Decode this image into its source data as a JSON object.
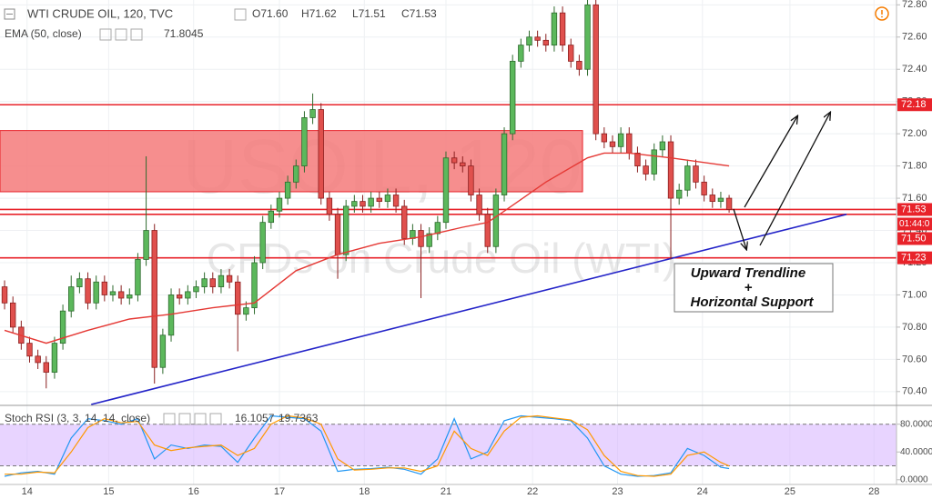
{
  "chart_data": [
    {
      "type": "candlestick",
      "title": "WTI CRUDE OIL, 120, TVC",
      "ohlc_labels": [
        "O71.60",
        "H71.62",
        "L71.51",
        "C71.53"
      ],
      "watermark": [
        "USOIL, 120",
        "CFDs on Crude Oil (WTI)"
      ],
      "annotation": [
        "Upward Trendline",
        "+",
        "Horizontal Support"
      ],
      "up_color": "#5cb85c",
      "down_color": "#e0504d",
      "open": [
        71.05,
        70.95,
        70.8,
        70.7,
        70.62,
        70.58,
        70.52,
        70.7,
        70.9,
        71.05,
        71.1,
        70.95,
        71.08,
        71.0,
        71.02,
        70.98,
        71.0,
        71.22,
        71.4,
        70.55,
        70.75,
        71.0,
        70.98,
        71.02,
        71.05,
        71.1,
        71.05,
        71.12,
        71.08,
        70.88,
        70.92,
        71.2,
        71.45,
        71.52,
        71.6,
        71.7,
        71.8,
        72.1,
        72.15,
        71.6,
        71.5,
        71.25,
        71.55,
        71.58,
        71.55,
        71.6,
        71.58,
        71.62,
        71.55,
        71.35,
        71.4,
        71.3,
        71.38,
        71.45,
        71.85,
        71.82,
        71.8,
        71.62,
        71.5,
        71.3,
        71.62,
        72.0,
        72.45,
        72.55,
        72.6,
        72.58,
        72.55,
        72.75,
        72.55,
        72.45,
        72.4,
        72.8,
        72.0,
        71.95,
        71.92,
        72.0,
        71.88,
        71.8,
        71.75,
        71.9,
        71.95,
        71.6,
        71.65,
        71.8,
        71.7,
        71.62,
        71.58,
        71.6
      ],
      "high": [
        71.09,
        70.99,
        70.84,
        70.74,
        70.66,
        70.62,
        70.74,
        70.94,
        71.12,
        71.14,
        71.14,
        71.12,
        71.12,
        71.06,
        71.06,
        71.04,
        71.26,
        71.86,
        71.44,
        70.79,
        71.04,
        71.04,
        71.06,
        71.09,
        71.14,
        71.14,
        71.16,
        71.16,
        71.12,
        70.96,
        71.24,
        71.49,
        71.56,
        71.64,
        71.74,
        71.84,
        72.14,
        72.25,
        72.19,
        71.64,
        71.54,
        71.59,
        71.62,
        71.62,
        71.64,
        71.64,
        71.66,
        71.66,
        71.59,
        71.44,
        71.44,
        71.42,
        71.49,
        71.89,
        71.89,
        71.86,
        71.84,
        71.66,
        71.54,
        71.66,
        72.04,
        72.49,
        72.59,
        72.64,
        72.64,
        72.62,
        72.79,
        72.79,
        72.59,
        72.49,
        72.83,
        72.83,
        72.04,
        71.99,
        72.04,
        72.04,
        71.92,
        71.84,
        71.94,
        71.99,
        71.99,
        71.69,
        71.84,
        71.84,
        71.74,
        71.66,
        71.64,
        71.62
      ],
      "low": [
        70.91,
        70.76,
        70.66,
        70.58,
        70.54,
        70.42,
        70.48,
        70.66,
        70.86,
        71.01,
        70.91,
        70.91,
        70.96,
        70.96,
        70.94,
        70.94,
        70.96,
        71.18,
        70.45,
        70.51,
        70.71,
        70.94,
        70.94,
        70.98,
        71.01,
        71.01,
        71.01,
        71.04,
        70.65,
        70.84,
        70.88,
        71.16,
        71.41,
        71.48,
        71.56,
        71.66,
        71.76,
        72.06,
        71.56,
        71.46,
        71.1,
        71.21,
        71.51,
        71.51,
        71.51,
        71.54,
        71.54,
        71.51,
        71.31,
        71.31,
        70.98,
        71.26,
        71.34,
        71.41,
        71.78,
        71.76,
        71.58,
        71.46,
        71.26,
        71.26,
        71.58,
        71.96,
        72.41,
        72.51,
        72.54,
        72.51,
        72.51,
        72.51,
        72.41,
        72.36,
        72.36,
        71.96,
        71.91,
        71.88,
        71.88,
        71.84,
        71.76,
        71.71,
        71.71,
        71.86,
        71.22,
        71.56,
        71.61,
        71.66,
        71.58,
        71.54,
        71.54,
        71.51
      ],
      "close": [
        70.95,
        70.8,
        70.7,
        70.62,
        70.58,
        70.52,
        70.7,
        70.9,
        71.05,
        71.1,
        70.95,
        71.08,
        71.0,
        71.02,
        70.98,
        71.0,
        71.22,
        71.4,
        70.55,
        70.75,
        71.0,
        70.98,
        71.02,
        71.05,
        71.1,
        71.05,
        71.12,
        71.08,
        70.88,
        70.92,
        71.2,
        71.45,
        71.52,
        71.6,
        71.7,
        71.8,
        72.1,
        72.15,
        71.6,
        71.5,
        71.25,
        71.55,
        71.58,
        71.55,
        71.6,
        71.58,
        71.62,
        71.55,
        71.35,
        71.4,
        71.3,
        71.38,
        71.45,
        71.85,
        71.82,
        71.8,
        71.62,
        71.5,
        71.3,
        71.62,
        72.0,
        72.45,
        72.55,
        72.6,
        72.58,
        72.55,
        72.75,
        72.55,
        72.45,
        72.4,
        72.8,
        72.0,
        71.95,
        71.92,
        72.0,
        71.88,
        71.8,
        71.75,
        71.9,
        71.95,
        71.6,
        71.65,
        71.8,
        71.7,
        71.62,
        71.58,
        71.6,
        71.53
      ],
      "ema": {
        "name": "EMA (50, close)",
        "color": "#e53935",
        "value_label": "71.8045",
        "x": [
          0,
          5,
          10,
          15,
          20,
          25,
          30,
          35,
          40,
          45,
          50,
          55,
          58,
          60,
          65,
          70,
          72,
          75,
          80,
          87
        ],
        "values": [
          70.78,
          70.7,
          70.78,
          70.85,
          70.88,
          70.92,
          70.95,
          71.15,
          71.25,
          71.32,
          71.36,
          71.42,
          71.45,
          71.52,
          71.7,
          71.85,
          71.88,
          71.88,
          71.85,
          71.8
        ]
      },
      "levels": [
        {
          "value": 72.18,
          "label": "72.18"
        },
        {
          "value": 71.53,
          "label": "71.53"
        },
        {
          "value": 71.5,
          "label": "71.50"
        },
        {
          "value": 71.23,
          "label": "71.23"
        }
      ],
      "level_color": "#e8232a",
      "countdown": "01:44:0",
      "zone": {
        "x": [
          -0.55,
          69.4
        ],
        "y": [
          71.64,
          72.02
        ],
        "color": "#f47a7a"
      },
      "trendline": {
        "x": [
          10.4,
          101.1
        ],
        "y": [
          70.32,
          71.5
        ],
        "color": "#2323c8"
      },
      "xlim": [
        -0.55,
        107.1
      ],
      "xticks": [
        {
          "value": 2.7,
          "label": "14"
        },
        {
          "value": 12.5,
          "label": "15"
        },
        {
          "value": 22.7,
          "label": "16"
        },
        {
          "value": 33,
          "label": "17"
        },
        {
          "value": 43.2,
          "label": "18"
        },
        {
          "value": 53,
          "label": "21"
        },
        {
          "value": 63.4,
          "label": "22"
        },
        {
          "value": 73.6,
          "label": "23"
        },
        {
          "value": 83.8,
          "label": "24"
        },
        {
          "value": 94.3,
          "label": "25"
        },
        {
          "value": 104.4,
          "label": "28"
        }
      ],
      "ylim": [
        70.32,
        72.83
      ],
      "yticks": [
        {
          "value": 70.4,
          "label": "70.40"
        },
        {
          "value": 70.6,
          "label": "70.60"
        },
        {
          "value": 70.8,
          "label": "70.80"
        },
        {
          "value": 71.0,
          "label": "71.00"
        },
        {
          "value": 71.2,
          "label": "71.20"
        },
        {
          "value": 71.4,
          "label": "71.40"
        },
        {
          "value": 71.6,
          "label": "71.60"
        },
        {
          "value": 71.8,
          "label": "71.80"
        },
        {
          "value": 72.0,
          "label": "72.00"
        },
        {
          "value": 72.2,
          "label": "72.20"
        },
        {
          "value": 72.4,
          "label": "72.40"
        },
        {
          "value": 72.6,
          "label": "72.60"
        },
        {
          "value": 72.8,
          "label": "72.80"
        }
      ],
      "grid": true
    },
    {
      "type": "stoch",
      "title": "Stoch RSI (3, 3, 14, 14, close)",
      "series": [
        {
          "color": "#2196f3",
          "value_label": "16.1057",
          "x": [
            0,
            2,
            4,
            6,
            8,
            10,
            12,
            14,
            16,
            18,
            20,
            22,
            24,
            26,
            28,
            30,
            32,
            34,
            36,
            38,
            40,
            42,
            44,
            46,
            48,
            50,
            52,
            54,
            56,
            58,
            60,
            62,
            64,
            66,
            68,
            70,
            72,
            74,
            76,
            78,
            80,
            82,
            84,
            86,
            87
          ],
          "values": [
            5,
            10,
            12,
            8,
            60,
            88,
            85,
            80,
            88,
            30,
            50,
            45,
            50,
            48,
            25,
            60,
            92,
            90,
            88,
            70,
            12,
            15,
            16,
            18,
            15,
            8,
            30,
            88,
            30,
            40,
            85,
            92,
            90,
            88,
            85,
            60,
            20,
            8,
            5,
            6,
            10,
            45,
            35,
            18,
            16.1057
          ]
        },
        {
          "color": "#ff9800",
          "value_label": "19.7363",
          "x": [
            0,
            2,
            4,
            6,
            8,
            10,
            12,
            14,
            16,
            18,
            20,
            22,
            24,
            26,
            28,
            30,
            32,
            34,
            36,
            38,
            40,
            42,
            44,
            46,
            48,
            50,
            52,
            54,
            56,
            58,
            60,
            62,
            64,
            66,
            68,
            70,
            72,
            74,
            76,
            78,
            80,
            82,
            84,
            86,
            87
          ],
          "values": [
            8,
            8,
            11,
            10,
            40,
            75,
            88,
            82,
            84,
            50,
            42,
            46,
            48,
            50,
            35,
            45,
            80,
            92,
            89,
            80,
            30,
            14,
            15,
            17,
            17,
            12,
            20,
            70,
            45,
            35,
            70,
            90,
            92,
            89,
            86,
            72,
            35,
            12,
            6,
            5,
            8,
            35,
            40,
            25,
            19.7363
          ]
        }
      ],
      "bands": [
        20,
        80
      ],
      "band_color": "#d8b8ff",
      "ylim": [
        -6.8,
        105.8
      ],
      "yticks": [
        {
          "value": 80,
          "label": "80.0000"
        },
        {
          "value": 40,
          "label": "40.0000"
        },
        {
          "value": 0,
          "label": "0.0000"
        }
      ]
    }
  ]
}
